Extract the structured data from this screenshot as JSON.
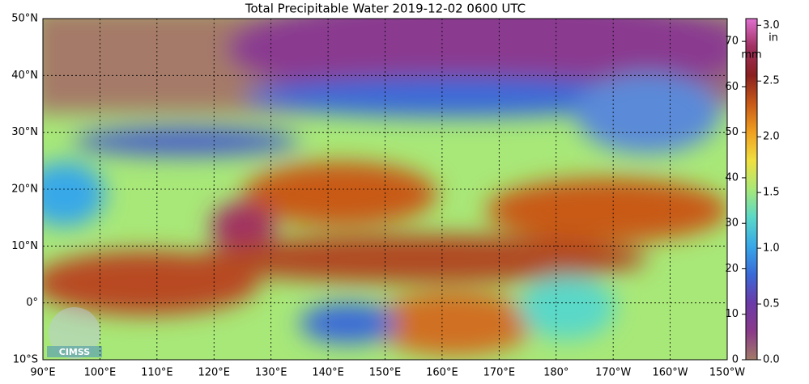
{
  "map": {
    "title": "Total Precipitable Water  2019-12-02 0600 UTC",
    "lonlim": [
      90,
      210
    ],
    "lonticks": [
      {
        "value": 90,
        "label": "90°E"
      },
      {
        "value": 100,
        "label": "100°E"
      },
      {
        "value": 110,
        "label": "110°E"
      },
      {
        "value": 120,
        "label": "120°E"
      },
      {
        "value": 130,
        "label": "130°E"
      },
      {
        "value": 140,
        "label": "140°E"
      },
      {
        "value": 150,
        "label": "150°E"
      },
      {
        "value": 160,
        "label": "160°E"
      },
      {
        "value": 170,
        "label": "170°E"
      },
      {
        "value": 180,
        "label": "180°"
      },
      {
        "value": 190,
        "label": "170°W"
      },
      {
        "value": 200,
        "label": "160°W"
      },
      {
        "value": 210,
        "label": "150°W"
      }
    ],
    "latlim": [
      -10,
      50
    ],
    "latticks": [
      {
        "value": 50,
        "label": "50°N"
      },
      {
        "value": 40,
        "label": "40°N"
      },
      {
        "value": 30,
        "label": "30°N"
      },
      {
        "value": 20,
        "label": "20°N"
      },
      {
        "value": 10,
        "label": "10°N"
      },
      {
        "value": 0,
        "label": "0°"
      },
      {
        "value": -10,
        "label": "10°S"
      }
    ],
    "grid": true,
    "logo": "CIMSS"
  },
  "colorbar": {
    "colors": [
      "#a27a68",
      "#8a3a8a",
      "#6a3aa8",
      "#3a6ad8",
      "#38a8e8",
      "#5ad8c8",
      "#a8e878",
      "#f0e040",
      "#f0a020",
      "#c85a18",
      "#8a2020",
      "#a03060",
      "#e070d0"
    ],
    "mm_label": "mm",
    "mm_lim": [
      0,
      75
    ],
    "mm_ticks": [
      0,
      10,
      20,
      30,
      40,
      50,
      60,
      70
    ],
    "in_label": "in",
    "in_lim": [
      0,
      3.06
    ],
    "in_ticks": [
      {
        "value": 0,
        "label": "0.0"
      },
      {
        "value": 0.5,
        "label": "0.5"
      },
      {
        "value": 1,
        "label": "1.0"
      },
      {
        "value": 1.5,
        "label": "1.5"
      },
      {
        "value": 2,
        "label": "2.0"
      },
      {
        "value": 2.5,
        "label": "2.5"
      },
      {
        "value": 3,
        "label": "3.0"
      }
    ]
  }
}
